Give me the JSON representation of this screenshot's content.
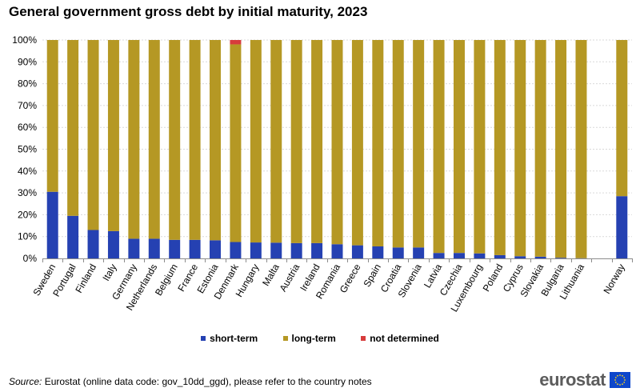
{
  "chart_data": {
    "type": "bar",
    "stacked": true,
    "title": "General government gross debt by initial maturity, 2023",
    "categories": [
      "Sweden",
      "Portugal",
      "Finland",
      "Italy",
      "Germany",
      "Netherlands",
      "Belgium",
      "France",
      "Estonia",
      "Denmark",
      "Hungary",
      "Malta",
      "Austria",
      "Ireland",
      "Romania",
      "Greece",
      "Spain",
      "Croatia",
      "Slovenia",
      "Latvia",
      "Czechia",
      "Luxembourg",
      "Poland",
      "Cyprus",
      "Slovakia",
      "Bulgaria",
      "Lithuania",
      "",
      "Norway"
    ],
    "series": [
      {
        "name": "short-term",
        "color": "#2541b2",
        "values": [
          30.5,
          19.5,
          13,
          12.5,
          9,
          9,
          8.5,
          8.5,
          8.3,
          7.5,
          7.3,
          7.2,
          7,
          7,
          6.5,
          6,
          5.5,
          5,
          5,
          2.5,
          2.5,
          2.3,
          1.5,
          1,
          0.8,
          0.3,
          0.1,
          null,
          28.5
        ]
      },
      {
        "name": "long-term",
        "color": "#b59824",
        "values": [
          69.5,
          80.5,
          87,
          87.5,
          91,
          91,
          91.5,
          91.5,
          91.7,
          90.5,
          92.7,
          92.8,
          93,
          93,
          93.5,
          94,
          94.5,
          95,
          95,
          97.5,
          97.5,
          97.7,
          98.5,
          99,
          99.2,
          99.7,
          99.9,
          null,
          71.5
        ]
      },
      {
        "name": "not determined",
        "color": "#d73c3c",
        "values": [
          0,
          0,
          0,
          0,
          0,
          0,
          0,
          0,
          0,
          2,
          0,
          0,
          0,
          0,
          0,
          0,
          0,
          0,
          0,
          0,
          0,
          0,
          0,
          0,
          0,
          0,
          0,
          null,
          0
        ]
      }
    ],
    "ylim": [
      0,
      100
    ],
    "yticks": [
      "0%",
      "10%",
      "20%",
      "30%",
      "40%",
      "50%",
      "60%",
      "70%",
      "80%",
      "90%",
      "100%"
    ],
    "grid": true,
    "legend": "bottom"
  },
  "title": "General government gross debt by initial maturity, 2023",
  "legend": {
    "short": "short-term",
    "long": "long-term",
    "nd": "not determined"
  },
  "source": {
    "label": "Source:",
    "text": " Eurostat (online data code: gov_10dd_ggd), please refer to the country notes"
  },
  "logo": {
    "text": "eurostat"
  },
  "colors": {
    "short": "#2541b2",
    "long": "#b59824",
    "nd": "#d73c3c",
    "grid": "#d9d9d9",
    "brand": "#0e47cb"
  }
}
